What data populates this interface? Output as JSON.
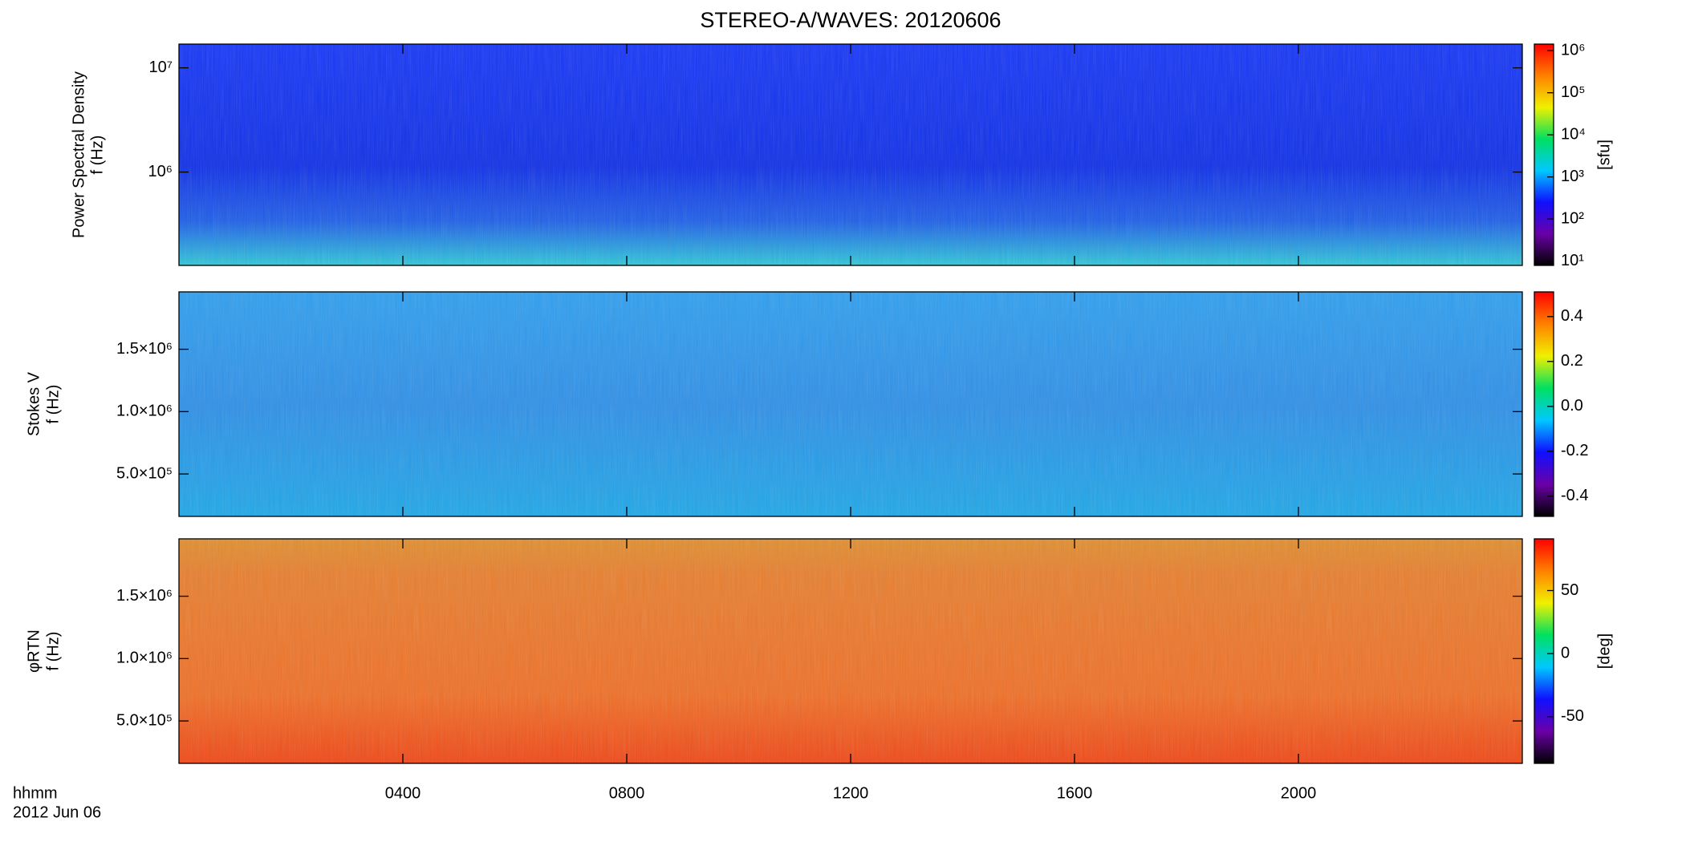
{
  "title": "STEREO-A/WAVES: 20120606",
  "chart_data": [
    {
      "type": "heatmap",
      "ylabel": [
        "Power Spectral Density",
        "f (Hz)"
      ],
      "yscale": "log",
      "ylim": [
        127000,
        16900000
      ],
      "yticks": [
        {
          "value": 1000000,
          "label": "10⁶"
        },
        {
          "value": 10000000,
          "label": "10⁷"
        }
      ],
      "cscale": "log",
      "clim": [
        7.9,
        1430000
      ],
      "cticks": [
        {
          "value": 10,
          "label": "10¹"
        },
        {
          "value": 100,
          "label": "10²"
        },
        {
          "value": 1000,
          "label": "10³"
        },
        {
          "value": 10000,
          "label": "10⁴"
        },
        {
          "value": 100000,
          "label": "10⁵"
        },
        {
          "value": 1000000,
          "label": "10⁶"
        }
      ],
      "clabel": "[sfu]",
      "colormap": [
        "#000000",
        "#6a00a8",
        "#1010ff",
        "#00c8ff",
        "#00e060",
        "#f0f000",
        "#ff8000",
        "#ff0000"
      ]
    },
    {
      "type": "heatmap",
      "ylabel": [
        "Stokes V",
        "f (Hz)"
      ],
      "yscale": "linear",
      "ylim": [
        160000,
        1960000
      ],
      "yticks": [
        {
          "value": 500000,
          "label": "5.0×10⁵"
        },
        {
          "value": 1000000,
          "label": "1.0×10⁶"
        },
        {
          "value": 1500000,
          "label": "1.5×10⁶"
        }
      ],
      "cscale": "linear",
      "clim": [
        -0.49,
        0.51
      ],
      "cticks": [
        -0.4,
        -0.2,
        {
          "value": 0,
          "label": "0.0"
        },
        0.2,
        0.4
      ],
      "colormap": [
        "#000000",
        "#6a00a8",
        "#1010ff",
        "#00c8ff",
        "#00e060",
        "#f0f000",
        "#ff8000",
        "#ff0000"
      ]
    },
    {
      "type": "heatmap",
      "ylabel": [
        "φRTN",
        "f (Hz)"
      ],
      "yscale": "linear",
      "ylim": [
        160000,
        1960000
      ],
      "yticks": [
        {
          "value": 500000,
          "label": "5.0×10⁵"
        },
        {
          "value": 1000000,
          "label": "1.0×10⁶"
        },
        {
          "value": 1500000,
          "label": "1.5×10⁶"
        }
      ],
      "cscale": "linear",
      "clim": [
        -87,
        91
      ],
      "cticks": [
        -50,
        0,
        50
      ],
      "clabel": "[deg]",
      "colormap": [
        "#000000",
        "#6a00a8",
        "#1010ff",
        "#00c8ff",
        "#00e060",
        "#f0f000",
        "#ff8000",
        "#ff0000"
      ],
      "xlabel": "hhmm",
      "date": "2012 Jun 06",
      "xlim": [
        0,
        24
      ],
      "xticks": [
        {
          "value": 4,
          "label": "0400"
        },
        {
          "value": 8,
          "label": "0800"
        },
        {
          "value": 12,
          "label": "1200"
        },
        {
          "value": 16,
          "label": "1600"
        },
        {
          "value": 20,
          "label": "2000"
        }
      ]
    }
  ]
}
